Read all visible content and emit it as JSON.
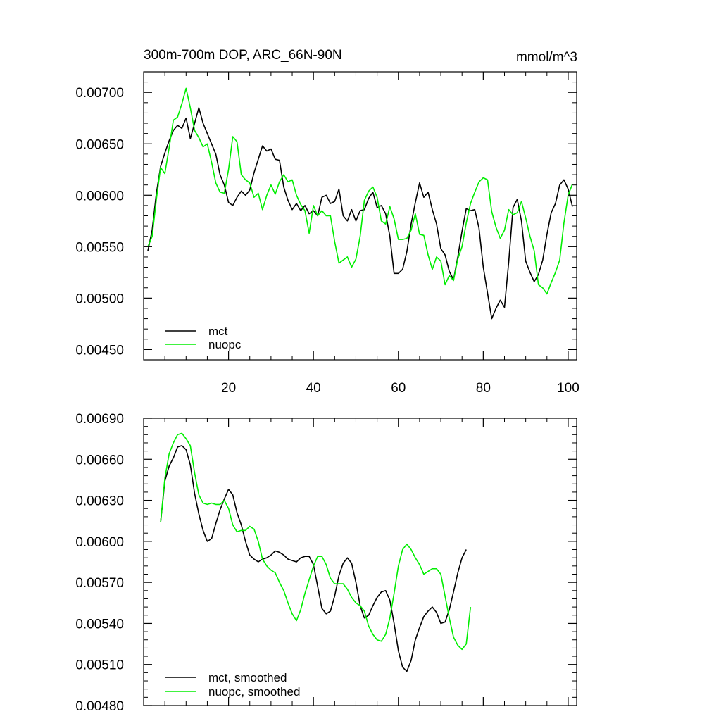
{
  "chart_data": [
    {
      "type": "line",
      "title": "300m-700m DOP, ARC_66N-90N",
      "units": "mmol/m^3",
      "xlabel": "",
      "ylabel": "",
      "xlim": [
        0,
        102
      ],
      "ylim": [
        0.0044,
        0.0072
      ],
      "yticks": [
        {
          "v": 0.0045,
          "label": "0.00450"
        },
        {
          "v": 0.005,
          "label": "0.00500"
        },
        {
          "v": 0.0055,
          "label": "0.00550"
        },
        {
          "v": 0.006,
          "label": "0.00600"
        },
        {
          "v": 0.0065,
          "label": "0.00650"
        },
        {
          "v": 0.007,
          "label": "0.00700"
        }
      ],
      "xticks": [
        {
          "v": 20,
          "label": "20"
        },
        {
          "v": 40,
          "label": "40"
        },
        {
          "v": 60,
          "label": "60"
        },
        {
          "v": 80,
          "label": "80"
        },
        {
          "v": 100,
          "label": "100"
        }
      ],
      "legend": {
        "position": "bottom-left"
      },
      "series": [
        {
          "name": "mct",
          "color": "#000000",
          "x_start": 1,
          "values": [
            0.00546,
            0.00566,
            0.00602,
            0.00628,
            0.00641,
            0.00653,
            0.00663,
            0.00668,
            0.00665,
            0.00675,
            0.00655,
            0.0067,
            0.00685,
            0.0067,
            0.0066,
            0.0065,
            0.0064,
            0.0062,
            0.0061,
            0.00593,
            0.0059,
            0.00598,
            0.00604,
            0.006,
            0.00605,
            0.00622,
            0.00635,
            0.00648,
            0.00643,
            0.00645,
            0.00635,
            0.00634,
            0.00608,
            0.00595,
            0.00586,
            0.00592,
            0.00585,
            0.0059,
            0.00582,
            0.00585,
            0.0058,
            0.00598,
            0.006,
            0.00592,
            0.00594,
            0.00606,
            0.0058,
            0.00575,
            0.00586,
            0.00575,
            0.00585,
            0.00586,
            0.00597,
            0.00603,
            0.00588,
            0.0059,
            0.00582,
            0.0056,
            0.00524,
            0.00524,
            0.00528,
            0.00545,
            0.00572,
            0.00593,
            0.00612,
            0.00598,
            0.00603,
            0.00586,
            0.00572,
            0.00548,
            0.00542,
            0.00526,
            0.00518,
            0.0054,
            0.00565,
            0.00587,
            0.00585,
            0.00586,
            0.00568,
            0.0053,
            0.00505,
            0.0048,
            0.0049,
            0.00498,
            0.00491,
            0.00535,
            0.00588,
            0.00596,
            0.00575,
            0.00536,
            0.00525,
            0.00516,
            0.00523,
            0.00537,
            0.00562,
            0.00583,
            0.00592,
            0.0061,
            0.00615,
            0.00606,
            0.00589
          ]
        },
        {
          "name": "nuopc",
          "color": "#00ee00",
          "x_start": 1,
          "values": [
            0.0055,
            0.0056,
            0.00596,
            0.00627,
            0.00621,
            0.00646,
            0.00673,
            0.00676,
            0.00689,
            0.00704,
            0.00685,
            0.00663,
            0.00656,
            0.00647,
            0.0065,
            0.00632,
            0.00612,
            0.00603,
            0.00602,
            0.00625,
            0.00657,
            0.00652,
            0.0062,
            0.00615,
            0.00612,
            0.00598,
            0.00602,
            0.00586,
            0.006,
            0.0061,
            0.00601,
            0.00613,
            0.0062,
            0.00613,
            0.00615,
            0.006,
            0.00591,
            0.00585,
            0.00563,
            0.0059,
            0.0058,
            0.00585,
            0.0058,
            0.0058,
            0.00555,
            0.00534,
            0.00537,
            0.0054,
            0.0053,
            0.00538,
            0.0056,
            0.00595,
            0.00604,
            0.00608,
            0.00598,
            0.00575,
            0.00572,
            0.00589,
            0.00577,
            0.00557,
            0.00557,
            0.00558,
            0.00566,
            0.00582,
            0.00562,
            0.00561,
            0.00542,
            0.00528,
            0.0054,
            0.00536,
            0.00513,
            0.00522,
            0.00517,
            0.00538,
            0.0055,
            0.00573,
            0.00592,
            0.00603,
            0.00613,
            0.00617,
            0.00615,
            0.00584,
            0.00569,
            0.00558,
            0.00566,
            0.00586,
            0.00581,
            0.00583,
            0.00594,
            0.00578,
            0.0056,
            0.00546,
            0.00513,
            0.0051,
            0.00504,
            0.00515,
            0.00525,
            0.00537,
            0.00573,
            0.006,
            0.00611
          ]
        }
      ]
    },
    {
      "type": "line",
      "title": "",
      "xlabel": "",
      "ylabel": "",
      "xlim": [
        0,
        102
      ],
      "ylim": [
        0.0048,
        0.0069
      ],
      "yticks": [
        {
          "v": 0.0048,
          "label": "0.00480"
        },
        {
          "v": 0.0051,
          "label": "0.00510"
        },
        {
          "v": 0.0054,
          "label": "0.00540"
        },
        {
          "v": 0.0057,
          "label": "0.00570"
        },
        {
          "v": 0.006,
          "label": "0.00600"
        },
        {
          "v": 0.0063,
          "label": "0.00630"
        },
        {
          "v": 0.0066,
          "label": "0.00660"
        },
        {
          "v": 0.0069,
          "label": "0.00690"
        }
      ],
      "xticks": [
        {
          "v": 20,
          "label": ""
        },
        {
          "v": 40,
          "label": ""
        },
        {
          "v": 60,
          "label": ""
        },
        {
          "v": 80,
          "label": ""
        },
        {
          "v": 100,
          "label": ""
        }
      ],
      "legend": {
        "position": "bottom-left"
      },
      "series": [
        {
          "name": "mct, smoothed",
          "color": "#000000",
          "x_start": 4,
          "values": [
            0.00614,
            0.00644,
            0.00655,
            0.00661,
            0.00669,
            0.0067,
            0.00667,
            0.00656,
            0.00635,
            0.0062,
            0.00608,
            0.006,
            0.00602,
            0.00613,
            0.00623,
            0.00631,
            0.00638,
            0.00634,
            0.00621,
            0.00612,
            0.006,
            0.0059,
            0.00587,
            0.00585,
            0.00587,
            0.00588,
            0.0059,
            0.00593,
            0.00592,
            0.0059,
            0.00587,
            0.00586,
            0.00585,
            0.00588,
            0.00589,
            0.00589,
            0.00583,
            0.00567,
            0.00551,
            0.00547,
            0.00549,
            0.0056,
            0.00575,
            0.00584,
            0.00588,
            0.00584,
            0.0057,
            0.00553,
            0.00544,
            0.00546,
            0.00553,
            0.00559,
            0.00563,
            0.00564,
            0.00557,
            0.0054,
            0.0052,
            0.00508,
            0.00505,
            0.00513,
            0.00528,
            0.00537,
            0.00545,
            0.00549,
            0.00552,
            0.00548,
            0.0054,
            0.00541,
            0.0055,
            0.00563,
            0.00577,
            0.00588,
            0.00594
          ]
        },
        {
          "name": "nuopc, smoothed",
          "color": "#00ee00",
          "x_start": 4,
          "values": [
            0.00614,
            0.00646,
            0.00664,
            0.00672,
            0.00678,
            0.00679,
            0.00675,
            0.0067,
            0.0065,
            0.00634,
            0.00628,
            0.00627,
            0.00628,
            0.00627,
            0.00627,
            0.0063,
            0.00624,
            0.00612,
            0.00607,
            0.00608,
            0.00608,
            0.00611,
            0.00609,
            0.006,
            0.00587,
            0.00582,
            0.00579,
            0.00577,
            0.0057,
            0.00564,
            0.00555,
            0.00547,
            0.00542,
            0.0055,
            0.00562,
            0.00572,
            0.00582,
            0.00589,
            0.00589,
            0.00583,
            0.00573,
            0.00569,
            0.00569,
            0.00569,
            0.00565,
            0.00559,
            0.00555,
            0.00553,
            0.00549,
            0.00538,
            0.00532,
            0.00528,
            0.00527,
            0.00532,
            0.00544,
            0.00562,
            0.00582,
            0.00594,
            0.00598,
            0.00594,
            0.00588,
            0.00583,
            0.00576,
            0.00578,
            0.0058,
            0.0058,
            0.00576,
            0.0056,
            0.00544,
            0.0053,
            0.00524,
            0.00521,
            0.00525,
            0.00552
          ]
        }
      ]
    }
  ]
}
